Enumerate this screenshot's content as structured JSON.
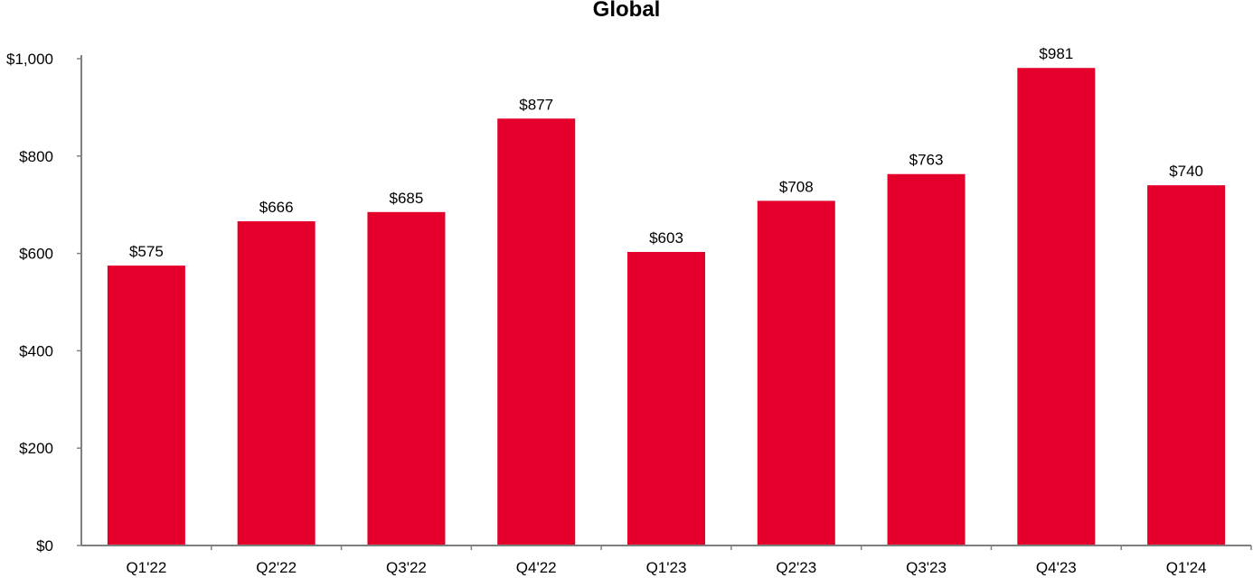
{
  "chart_data": {
    "type": "bar",
    "title": "Global",
    "xlabel": "",
    "ylabel": "",
    "categories": [
      "Q1'22",
      "Q2'22",
      "Q3'22",
      "Q4'22",
      "Q1'23",
      "Q2'23",
      "Q3'23",
      "Q4'23",
      "Q1'24"
    ],
    "values": [
      575,
      666,
      685,
      877,
      603,
      708,
      763,
      981,
      740
    ],
    "data_labels": [
      "$575",
      "$666",
      "$685",
      "$877",
      "$603",
      "$708",
      "$763",
      "$981",
      "$740"
    ],
    "ylim": [
      0,
      1000
    ],
    "yticks": [
      0,
      200,
      400,
      600,
      800,
      1000
    ],
    "ytick_labels": [
      "$0",
      "$200",
      "$400",
      "$600",
      "$800",
      "$1,000"
    ],
    "bar_color": "#e4002b",
    "axis_color": "#7f7f7f",
    "grid": false,
    "legend": false
  }
}
